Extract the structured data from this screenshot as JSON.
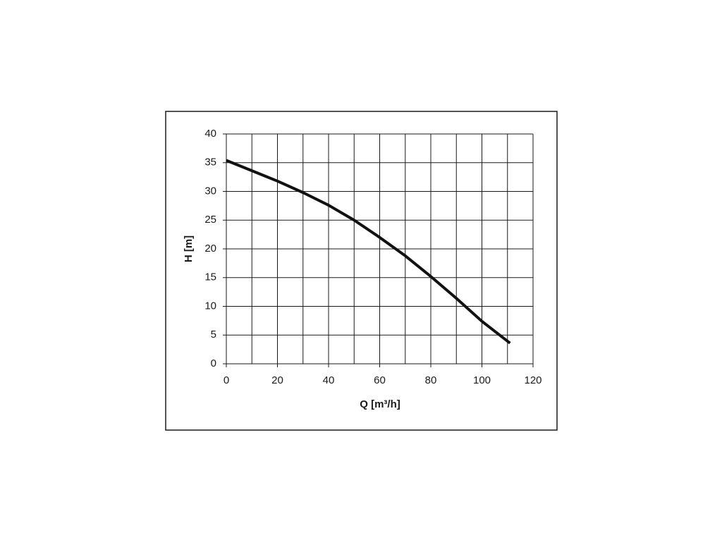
{
  "chart_data": {
    "type": "line",
    "x_label": "Q [m³/h]",
    "y_label": "H [m]",
    "x": [
      0,
      10,
      20,
      30,
      40,
      50,
      60,
      70,
      80,
      90,
      100,
      111
    ],
    "series": [
      {
        "name": "H",
        "color": "#111111",
        "values": [
          35.4,
          33.6,
          31.8,
          29.8,
          27.6,
          25,
          22,
          18.8,
          15.2,
          11.4,
          7.4,
          3.6
        ]
      }
    ],
    "xlim": [
      0,
      120
    ],
    "ylim": [
      0,
      40
    ],
    "xticks": [
      0,
      20,
      40,
      60,
      80,
      100,
      120
    ],
    "xminorticks": [
      10,
      30,
      50,
      70,
      90,
      110
    ],
    "yticks": [
      0,
      5,
      10,
      15,
      20,
      25,
      30,
      35,
      40
    ],
    "grid": true,
    "legend": false
  }
}
